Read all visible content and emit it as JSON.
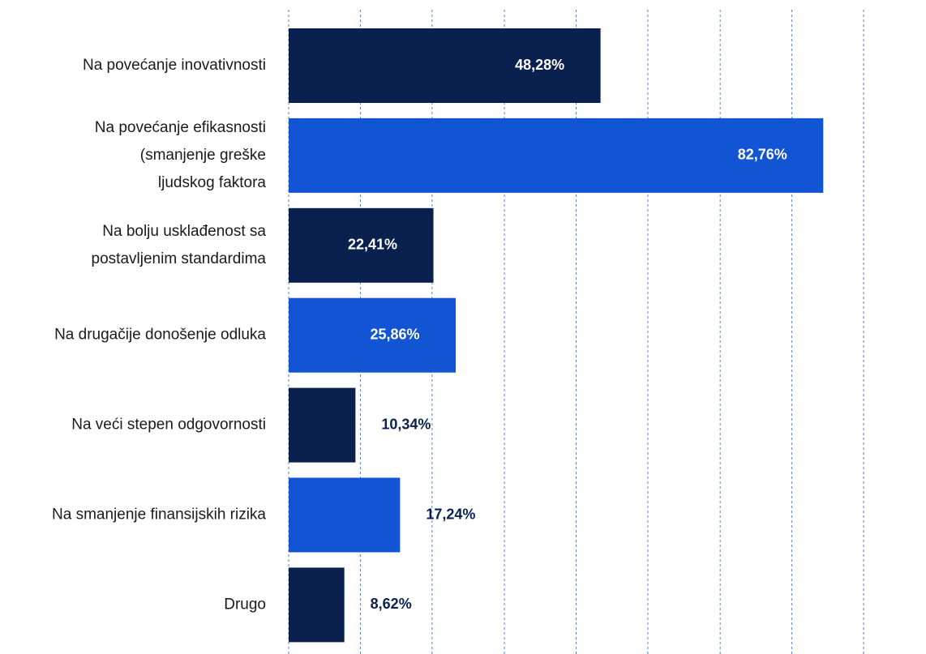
{
  "chart_data": {
    "type": "bar",
    "orientation": "horizontal",
    "categories": [
      [
        "Na povećanje inovativnosti"
      ],
      [
        "Na povećanje efikasnosti",
        "(smanjenje greške",
        "ljudskog faktora"
      ],
      [
        "Na bolju usklađenost sa",
        "postavljenim standardima"
      ],
      [
        "Na drugačije donošenje odluka"
      ],
      [
        "Na veći stepen odgovornosti"
      ],
      [
        "Na smanjenje finansijskih rizika"
      ],
      [
        "Drugo"
      ]
    ],
    "values": [
      48.28,
      82.76,
      22.41,
      25.86,
      10.34,
      17.24,
      8.62
    ],
    "value_labels": [
      "48,28%",
      "82,76%",
      "22,41%",
      "25,86%",
      "10,34%",
      "17,24%",
      "8,62%"
    ],
    "colors": [
      "#0a2150",
      "#1155d4",
      "#0a2150",
      "#1155d4",
      "#0a2150",
      "#1155d4",
      "#0a2150"
    ],
    "xlim": [
      0,
      89
    ],
    "xticks": [
      0,
      11.1,
      22.2,
      33.4,
      44.5,
      55.6,
      66.8,
      77.9,
      89
    ],
    "grid": true
  }
}
